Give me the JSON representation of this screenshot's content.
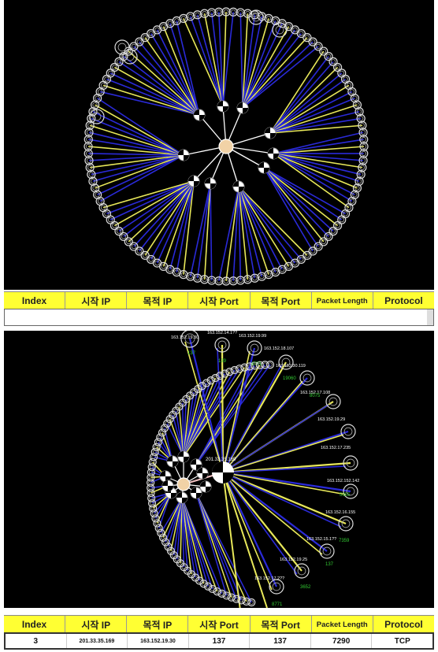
{
  "columns": [
    {
      "label": "Index"
    },
    {
      "label": "시작 IP"
    },
    {
      "label": "목적 IP"
    },
    {
      "label": "시작 Port"
    },
    {
      "label": "목적 Port"
    },
    {
      "label": "Packet Length"
    },
    {
      "label": "Protocol"
    }
  ],
  "selected_row": {
    "index": "3",
    "src_ip": "201.33.35.169",
    "dst_ip": "163.152.19.30",
    "src_port": "137",
    "dst_port": "137",
    "packet_length": "7290",
    "protocol": "TCP"
  },
  "graph2": {
    "center_label": "201.33.35.169",
    "node_labels": [
      "163.152.19.30",
      "163.152.14.1??",
      "163.152.19.99",
      "163.152.18.107",
      "163.152.30.119",
      "163.152.17.108",
      "163.152.19.29",
      "163.152.17.235",
      "163.152.152.142",
      "163.152.16.155",
      "163.152.15.1??",
      "163.152.19.25",
      "163.152.17.2??"
    ],
    "port_labels": [
      "137",
      "139",
      "8771",
      "19060",
      "8075",
      "5355",
      "7359",
      "137",
      "3652",
      "8771"
    ]
  },
  "colors": {
    "background": "#000000",
    "header": "#ffff33",
    "link_yellow": "#e8e85a",
    "link_blue": "#2a2ad8",
    "port_green": "#33cc33"
  }
}
